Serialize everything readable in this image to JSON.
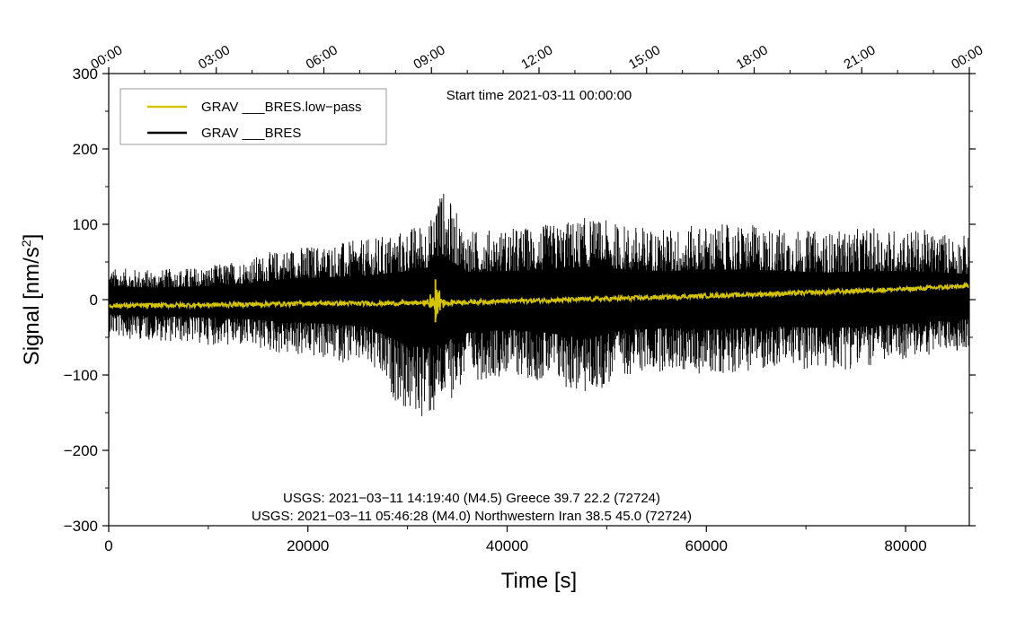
{
  "chart_data": {
    "type": "line",
    "title": "Start time 2021-03-11 00:00:00",
    "xlabel": "Time [s]",
    "ylabel_main": "Signal [nm/s",
    "ylabel_sup": "2",
    "ylabel_end": "]",
    "xlim": [
      0,
      86400
    ],
    "ylim": [
      -300,
      300
    ],
    "x_ticks": [
      0,
      20000,
      40000,
      60000,
      80000
    ],
    "x_tick_labels": [
      "0",
      "20000",
      "40000",
      "60000",
      "80000"
    ],
    "y_ticks": [
      300,
      200,
      100,
      0,
      -100,
      -200,
      -300
    ],
    "y_tick_labels": [
      "300",
      "200",
      "100",
      "0",
      "−100",
      "−200",
      "−300"
    ],
    "top_axis": {
      "values": [
        0,
        10800,
        21600,
        32400,
        43200,
        54000,
        64800,
        75600,
        86400
      ],
      "labels": [
        "00:00",
        "03:00",
        "06:00",
        "09:00",
        "12:00",
        "15:00",
        "18:00",
        "21:00",
        "00:00"
      ]
    },
    "legend": {
      "position": "top-left",
      "entries": [
        {
          "name": "GRAV ___BRES.low−pass",
          "color": "#d4c400"
        },
        {
          "name": "GRAV ___BRES",
          "color": "#000000"
        }
      ]
    },
    "series": [
      {
        "name": "GRAV ___BRES",
        "color": "#000000",
        "envelope_x": [
          0,
          5000,
          10000,
          14000,
          18000,
          22000,
          26000,
          30000,
          32600,
          33000,
          36000,
          40000,
          44000,
          48000,
          52000,
          56000,
          60000,
          64000,
          68000,
          72000,
          76000,
          80000,
          84000,
          86400
        ],
        "envelope_upper": [
          42,
          40,
          45,
          55,
          70,
          75,
          80,
          95,
          110,
          160,
          92,
          95,
          100,
          110,
          100,
          95,
          100,
          100,
          95,
          90,
          95,
          95,
          90,
          85
        ],
        "envelope_lower": [
          -50,
          -55,
          -60,
          -65,
          -75,
          -80,
          -90,
          -155,
          -160,
          -150,
          -110,
          -100,
          -110,
          -130,
          -100,
          -95,
          -100,
          -95,
          -90,
          -95,
          -90,
          -80,
          -70,
          -65
        ]
      },
      {
        "name": "GRAV ___BRES.low−pass",
        "color": "#d4c400",
        "trend_x": [
          0,
          10000,
          20000,
          28000,
          32800,
          40000,
          50000,
          60000,
          70000,
          80000,
          86400
        ],
        "trend_y": [
          -8,
          -7,
          -5,
          -5,
          -4,
          -2,
          1,
          5,
          9,
          14,
          18
        ],
        "spike_x": 32800,
        "spike_range": [
          -30,
          27
        ]
      }
    ],
    "annotations": [
      "USGS: 2021−03−11 14:19:40 (M4.5) Greece 39.7 22.2 (72724)",
      "USGS: 2021−03−11 05:46:28 (M4.0) Northwestern Iran 38.5 45.0 (72724)"
    ]
  }
}
